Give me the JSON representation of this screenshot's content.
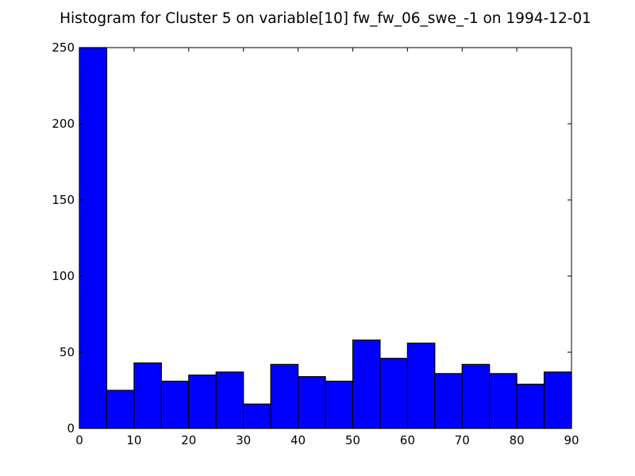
{
  "chart_data": {
    "type": "bar",
    "title": "Histogram for Cluster 5 on variable[10] fw_fw_06_swe_-1 on 1994-12-01",
    "xlabel": "",
    "ylabel": "",
    "bin_edges": [
      0,
      5,
      10,
      15,
      20,
      25,
      30,
      35,
      40,
      45,
      50,
      55,
      60,
      65,
      70,
      75,
      80,
      85,
      90
    ],
    "values": [
      250,
      25,
      43,
      31,
      35,
      37,
      16,
      42,
      34,
      31,
      58,
      46,
      56,
      36,
      42,
      36,
      29,
      37
    ],
    "xlim": [
      0,
      90
    ],
    "ylim": [
      0,
      250
    ],
    "xticks": [
      "0",
      "10",
      "20",
      "30",
      "40",
      "50",
      "60",
      "70",
      "80",
      "90"
    ],
    "yticks": [
      "0",
      "50",
      "100",
      "150",
      "200",
      "250"
    ],
    "grid": false,
    "bar_color": "#0000ff",
    "edge_color": "#000000"
  }
}
